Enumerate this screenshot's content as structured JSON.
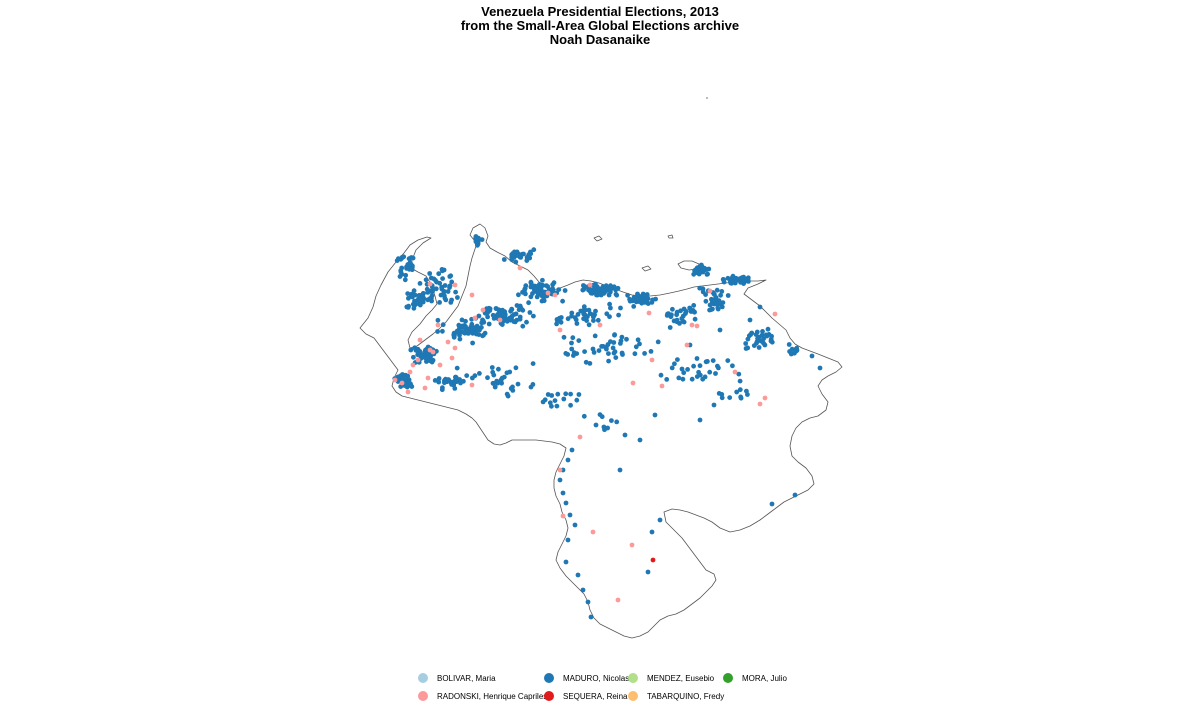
{
  "title": {
    "line1": "Venezuela Presidential Elections, 2013",
    "line2": "from the Small-Area Global Elections archive",
    "line3": "Noah Dasanaike"
  },
  "map": {
    "country": "Venezuela",
    "projection": "lon-lat",
    "background": "#ffffff",
    "border_color": "#555555"
  },
  "legend": {
    "items": [
      {
        "label": "BOLIVAR, Maria",
        "color": "#a6cee3"
      },
      {
        "label": "MADURO, Nicolas",
        "color": "#1f78b4"
      },
      {
        "label": "MENDEZ, Eusebio",
        "color": "#b2df8a"
      },
      {
        "label": "MORA, Julio",
        "color": "#33a02c"
      },
      {
        "label": "RADONSKI, Henrique Capriles",
        "color": "#fb9a99"
      },
      {
        "label": "SEQUERA, Reina",
        "color": "#e31a1c"
      },
      {
        "label": "TABARQUINO, Fredy",
        "color": "#fdbf6f"
      }
    ]
  },
  "chart_data": {
    "type": "scatter",
    "description_of_marks": "each dot is a small area colored by its winning candidate",
    "title": "Venezuela Presidential Elections, 2013",
    "legend_position": "bottom",
    "series": [
      {
        "name": "MADURO, Nicolas",
        "color": "#1f78b4"
      },
      {
        "name": "RADONSKI, Henrique Capriles",
        "color": "#fb9a99"
      },
      {
        "name": "SEQUERA, Reina",
        "color": "#e31a1c"
      }
    ]
  }
}
